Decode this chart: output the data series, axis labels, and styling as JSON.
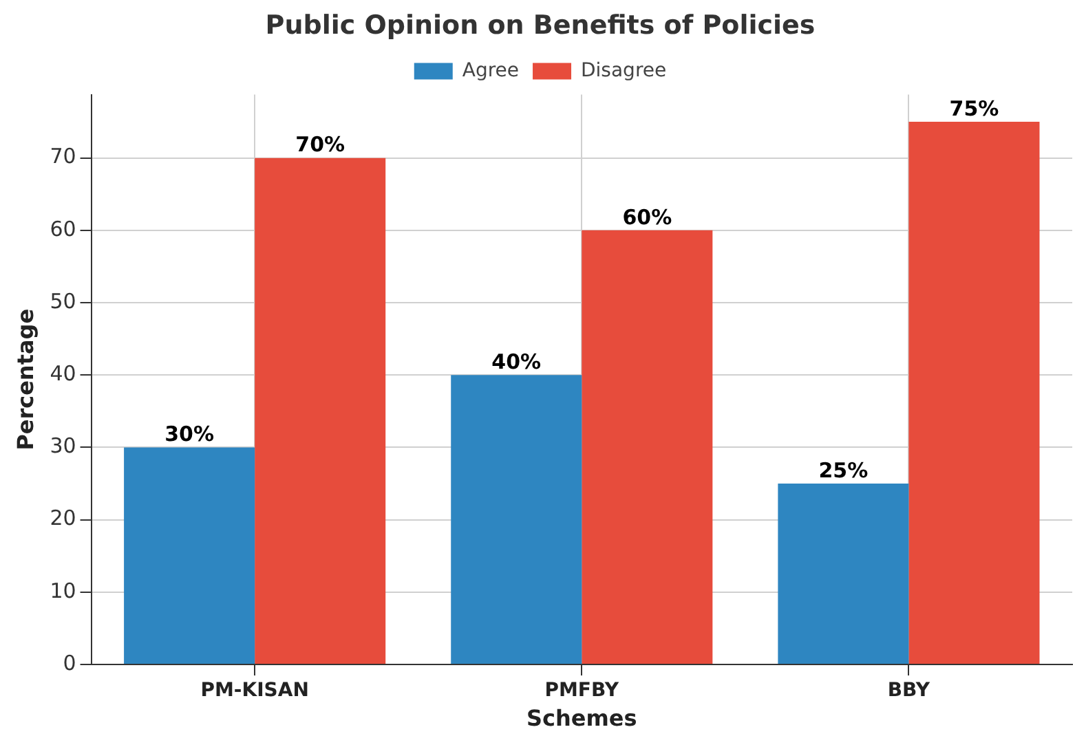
{
  "chart_data": {
    "type": "bar",
    "title": "Public Opinion on Benefits of Policies",
    "xlabel": "Schemes",
    "ylabel": "Percentage",
    "categories": [
      "PM-KISAN",
      "PMFBY",
      "BBY"
    ],
    "series": [
      {
        "name": "Agree",
        "color": "#2e86c1",
        "values": [
          30,
          40,
          25
        ],
        "value_labels": [
          "30%",
          "40%",
          "25%"
        ]
      },
      {
        "name": "Disagree",
        "color": "#e74c3c",
        "values": [
          70,
          60,
          75
        ],
        "value_labels": [
          "70%",
          "60%",
          "75%"
        ]
      }
    ],
    "ylim": [
      0,
      78.75
    ],
    "yticks": [
      0,
      10,
      20,
      30,
      40,
      50,
      60,
      70
    ],
    "grid": true,
    "legend": "top"
  }
}
